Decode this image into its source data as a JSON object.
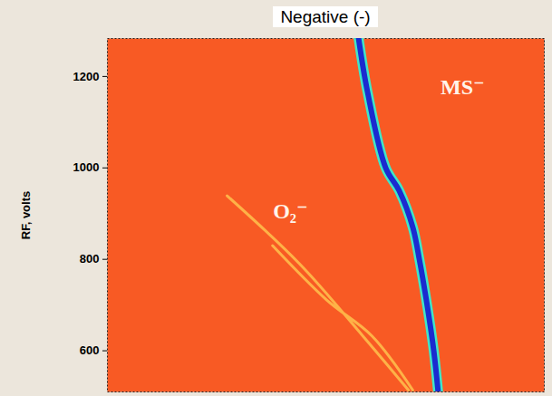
{
  "chart_data": {
    "type": "line",
    "title": "Negative (-)",
    "y_label": "RF, volts",
    "xlim": [
      0,
      100
    ],
    "ylim": [
      510,
      1283
    ],
    "yticks": [
      600,
      800,
      1000,
      1200
    ],
    "tick_labels": "y",
    "grid": false,
    "series": [
      {
        "name": "MS⁻",
        "color": "#1a2bd0",
        "x": [
          57.5,
          59.5,
          63.7,
          66.8,
          69.9,
          71.4,
          73.0,
          74.7,
          75.7
        ],
        "values": [
          1283,
          1168,
          1000,
          950,
          870,
          800,
          711,
          600,
          510
        ]
      },
      {
        "name": "O₂⁻",
        "color": "#ffc850",
        "x": [
          27.4,
          44.0,
          58.5,
          68.9,
          null,
          37.8,
          50.2,
          60.6,
          69.9
        ],
        "values": [
          939,
          790,
          632,
          514,
          null,
          830,
          711,
          632,
          514
        ]
      }
    ],
    "annotations": [
      {
        "text": "MS⁻",
        "x": 81.3,
        "y": 1177
      },
      {
        "text": "O₂⁻",
        "x": 41.9,
        "y": 904
      }
    ]
  }
}
